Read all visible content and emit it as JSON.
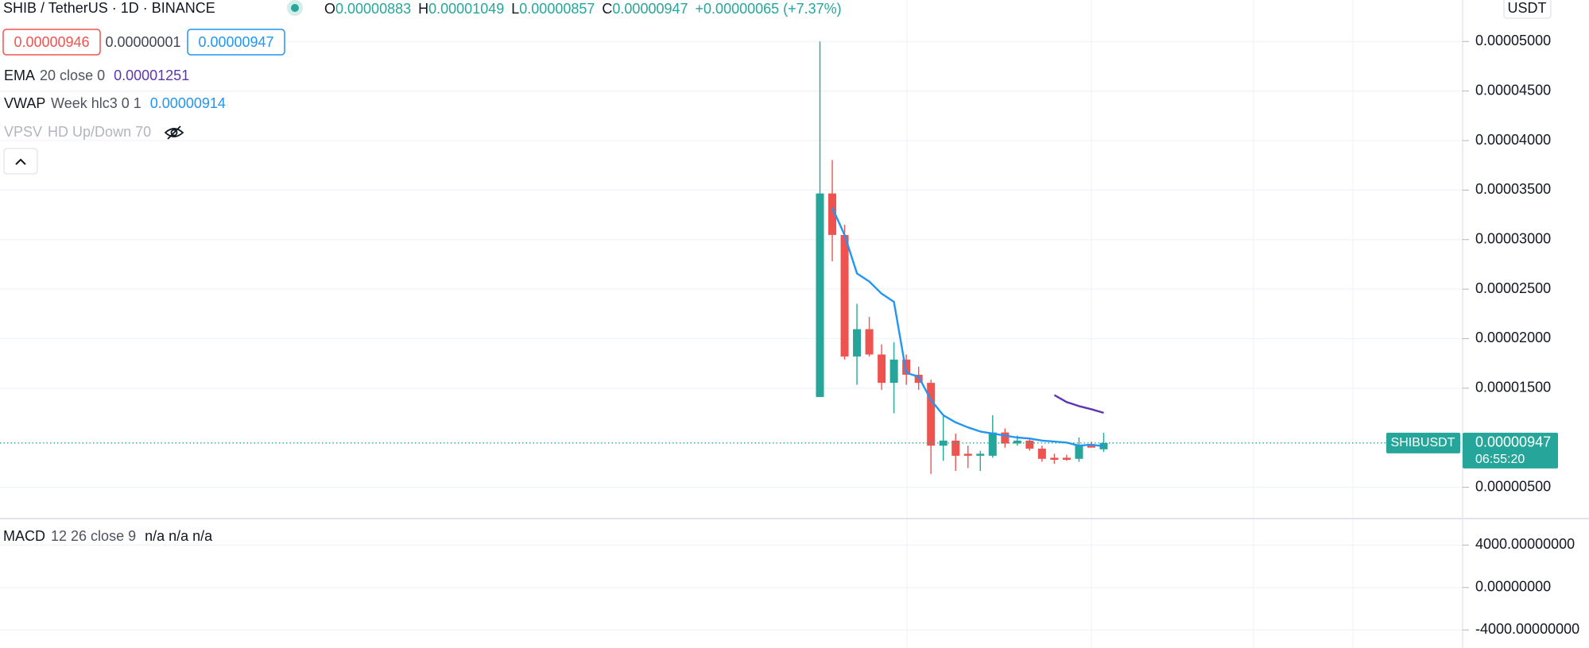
{
  "header": {
    "symbol": "SHIB / TetherUS · 1D · BINANCE",
    "ohlc": [
      {
        "key": "O",
        "value": "0.00000883"
      },
      {
        "key": "H",
        "value": "0.00001049"
      },
      {
        "key": "L",
        "value": "0.00000857"
      },
      {
        "key": "C",
        "value": "0.00000947"
      }
    ],
    "change": "+0.00000065 (+7.37%)",
    "sell": "0.00000946",
    "spread": "0.00000001",
    "buy": "0.00000947",
    "currency": "USDT"
  },
  "indicators": [
    {
      "name": "EMA",
      "params": "20 close 0",
      "value": "0.00001251"
    },
    {
      "name": "VWAP",
      "params": "Week hlc3 0 1",
      "value": "0.00000914"
    },
    {
      "name": "VPSV",
      "params": "HD Up/Down 70"
    }
  ],
  "chart_data": [
    {
      "type": "candlestick",
      "up_color": "#26a69a",
      "down_color": "#ef5350",
      "open": [
        1.411e-05,
        3.466e-05,
        3.047e-05,
        1.82e-05,
        2.096e-05,
        1.84e-05,
        1.554e-05,
        1.789e-05,
        1.636e-05,
        1.554e-05,
        9.2e-06,
        9.71e-06,
        8.38e-06,
        8.18e-06,
        8.18e-06,
        1.053e-05,
        9.41e-06,
        9.71e-06,
        8.9e-06,
        7.98e-06,
        7.98e-06,
        7.87e-06,
        9.2e-06,
        8.83e-06
      ],
      "high": [
        5e-05,
        3.804e-05,
        3.149e-05,
        2.352e-05,
        2.219e-05,
        1.943e-05,
        1.963e-05,
        1.84e-05,
        1.718e-05,
        1.585e-05,
        1.227e-05,
        1.043e-05,
        9.2e-06,
        8.69e-06,
        1.227e-05,
        1.094e-05,
        1.022e-05,
        1.002e-05,
        9.2e-06,
        8.38e-06,
        8.28e-06,
        1.002e-05,
        9.61e-06,
        1.049e-05
      ],
      "low": [
        1.411e-05,
        2.781e-05,
        1.789e-05,
        1.534e-05,
        1.82e-05,
        1.483e-05,
        1.247e-05,
        1.534e-05,
        1.483e-05,
        6.34e-06,
        7.67e-06,
        6.65e-06,
        6.95e-06,
        6.65e-06,
        7.98e-06,
        9e-06,
        9.2e-06,
        8.69e-06,
        7.57e-06,
        7.36e-06,
        7.67e-06,
        7.57e-06,
        9e-06,
        8.57e-06
      ],
      "close": [
        3.466e-05,
        3.047e-05,
        1.82e-05,
        2.096e-05,
        1.84e-05,
        1.554e-05,
        1.789e-05,
        1.636e-05,
        1.554e-05,
        9.2e-06,
        9.71e-06,
        8.18e-06,
        8.18e-06,
        8.38e-06,
        1.053e-05,
        9.41e-06,
        9.71e-06,
        8.9e-06,
        7.87e-06,
        7.77e-06,
        7.77e-06,
        9.2e-06,
        9e-06,
        9.47e-06
      ],
      "series": [
        {
          "name": "VWAP",
          "color": "#2196f3",
          "values": [
            null,
            3.323e-05,
            3.047e-05,
            2.658e-05,
            2.577e-05,
            2.454e-05,
            2.372e-05,
            1.656e-05,
            1.616e-05,
            1.38e-05,
            1.227e-05,
            1.155e-05,
            1.104e-05,
            1.063e-05,
            1.043e-05,
            1.022e-05,
            1.002e-05,
            9.92e-06,
            9.71e-06,
            9.61e-06,
            9.51e-06,
            9.2e-06,
            9.3e-06,
            9.14e-06
          ]
        },
        {
          "name": "EMA",
          "color": "#5e35b1",
          "values": [
            null,
            null,
            null,
            null,
            null,
            null,
            null,
            null,
            null,
            null,
            null,
            null,
            null,
            null,
            null,
            null,
            null,
            null,
            null,
            1.431e-05,
            1.36e-05,
            1.319e-05,
            1.288e-05,
            1.251e-05
          ]
        }
      ],
      "ylim": [
        1.84e-06,
        5.419e-05
      ],
      "yticks": [
        {
          "value": 5e-06,
          "label": "0.00000500"
        },
        {
          "value": 1.5e-05,
          "label": "0.00001500"
        },
        {
          "value": 2e-05,
          "label": "0.00002000"
        },
        {
          "value": 2.5e-05,
          "label": "0.00002500"
        },
        {
          "value": 3e-05,
          "label": "0.00003000"
        },
        {
          "value": 3.5e-05,
          "label": "0.00003500"
        },
        {
          "value": 4e-05,
          "label": "0.00004000"
        },
        {
          "value": 4.5e-05,
          "label": "0.00004500"
        },
        {
          "value": 5e-05,
          "label": "0.00005000"
        }
      ],
      "grid": true,
      "last_price": {
        "value": 9.47e-06,
        "label": "0.00000947"
      },
      "symbol_tag": "SHIBUSDT",
      "countdown": "06:55:20"
    },
    {
      "type": "macd",
      "title": "MACD",
      "params": "12 26 close 9",
      "values_text": "n/a n/a n/a",
      "ylim": [
        -5700,
        6500
      ],
      "yticks": [
        {
          "value": 4000,
          "label": "4000.00000000"
        },
        {
          "value": 0,
          "label": "0.00000000"
        },
        {
          "value": -4000,
          "label": "-4000.00000000"
        }
      ],
      "grid": true
    }
  ]
}
